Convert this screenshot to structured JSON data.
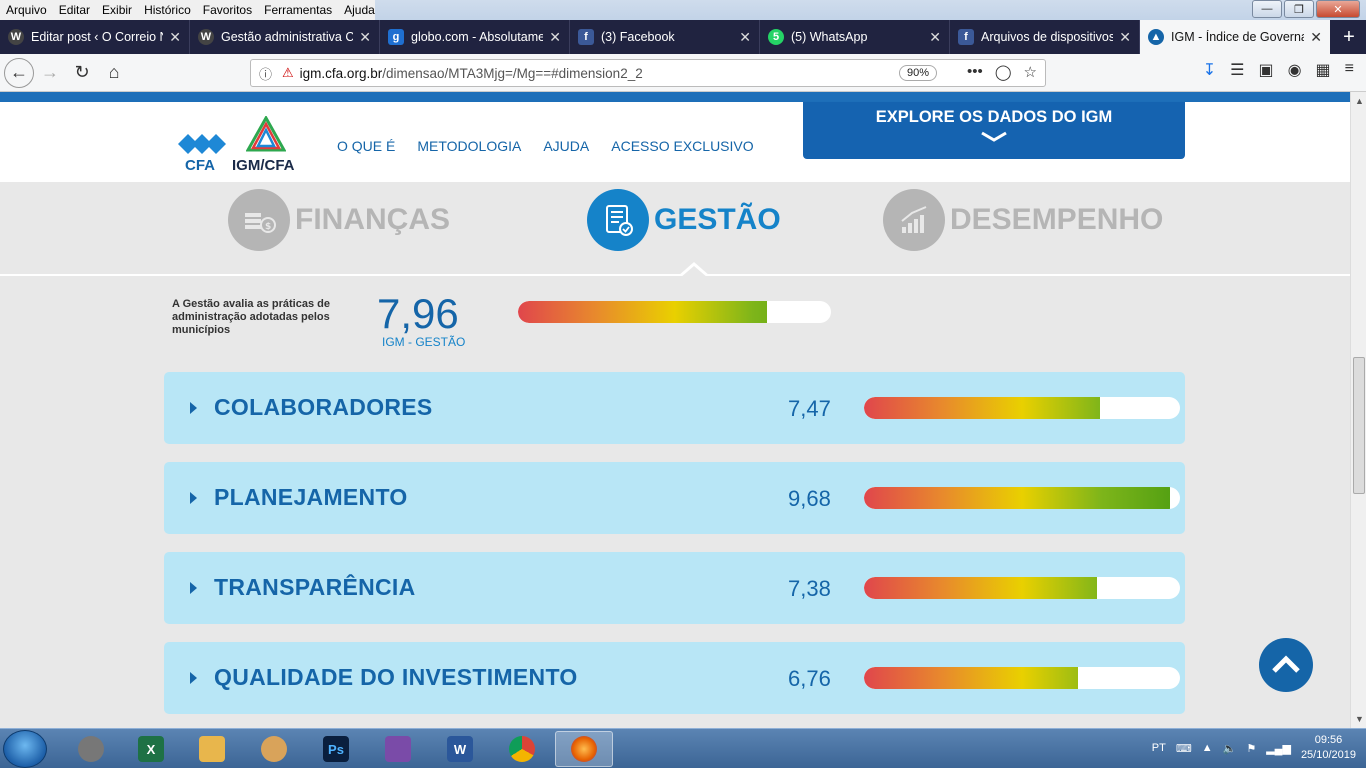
{
  "menubar": {
    "items": [
      "Arquivo",
      "Editar",
      "Exibir",
      "Histórico",
      "Favoritos",
      "Ferramentas",
      "Ajuda"
    ]
  },
  "tabs": [
    {
      "label": "Editar post ‹ O Correio N",
      "icon": "wordpress-icon",
      "active": false
    },
    {
      "label": "Gestão administrativa Cl",
      "icon": "wordpress-icon",
      "active": false
    },
    {
      "label": "globo.com - Absolutame",
      "icon": "globo-icon",
      "active": false
    },
    {
      "label": "(3) Facebook",
      "icon": "facebook-icon",
      "active": false
    },
    {
      "label": "(5) WhatsApp",
      "icon": "whatsapp-icon",
      "active": false
    },
    {
      "label": "Arquivos de dispositivos",
      "icon": "facebook-icon",
      "active": false
    },
    {
      "label": "IGM - Índice de Governa",
      "icon": "igm-icon",
      "active": true
    }
  ],
  "navbar": {
    "url_domain": "igm.cfa.org.br",
    "url_path": "/dimensao/MTA3Mjg=/Mg==#dimension2_2",
    "zoom": "90%",
    "more": "•••"
  },
  "site": {
    "logo_cfa": "CFA",
    "logo_igm": "IGM/CFA",
    "nav": [
      "O QUE É",
      "METODOLOGIA",
      "AJUDA",
      "ACESSO EXCLUSIVO"
    ],
    "explore_label": "EXPLORE OS DADOS DO IGM"
  },
  "dimensions": [
    {
      "label": "FINANÇAS",
      "active": false
    },
    {
      "label": "GESTÃO",
      "active": true
    },
    {
      "label": "DESEMPENHO",
      "active": false
    }
  ],
  "summary": {
    "description": "A Gestão avalia as práticas de administração adotadas pelos municípios",
    "score": "7,96",
    "score_label": "IGM - GESTÃO",
    "score_value": 7.96
  },
  "indicators": [
    {
      "name": "COLABORADORES",
      "score": "7,47",
      "value": 7.47
    },
    {
      "name": "PLANEJAMENTO",
      "score": "9,68",
      "value": 9.68
    },
    {
      "name": "TRANSPARÊNCIA",
      "score": "7,38",
      "value": 7.38
    },
    {
      "name": "QUALIDADE DO INVESTIMENTO",
      "score": "6,76",
      "value": 6.76
    }
  ],
  "scale_max": 10,
  "colors": {
    "primary": "#1565a8",
    "accent": "#1583c9",
    "card": "#b8e6f6",
    "inactive": "#b5b5b5"
  },
  "taskbar": {
    "apps": [
      "chrome-icon",
      "excel-icon",
      "explorer-icon",
      "paint-icon",
      "photoshop-icon",
      "movie-maker-icon",
      "word-icon",
      "chrome-icon",
      "firefox-icon"
    ],
    "lang": "PT",
    "time": "09:56",
    "date": "25/10/2019"
  }
}
